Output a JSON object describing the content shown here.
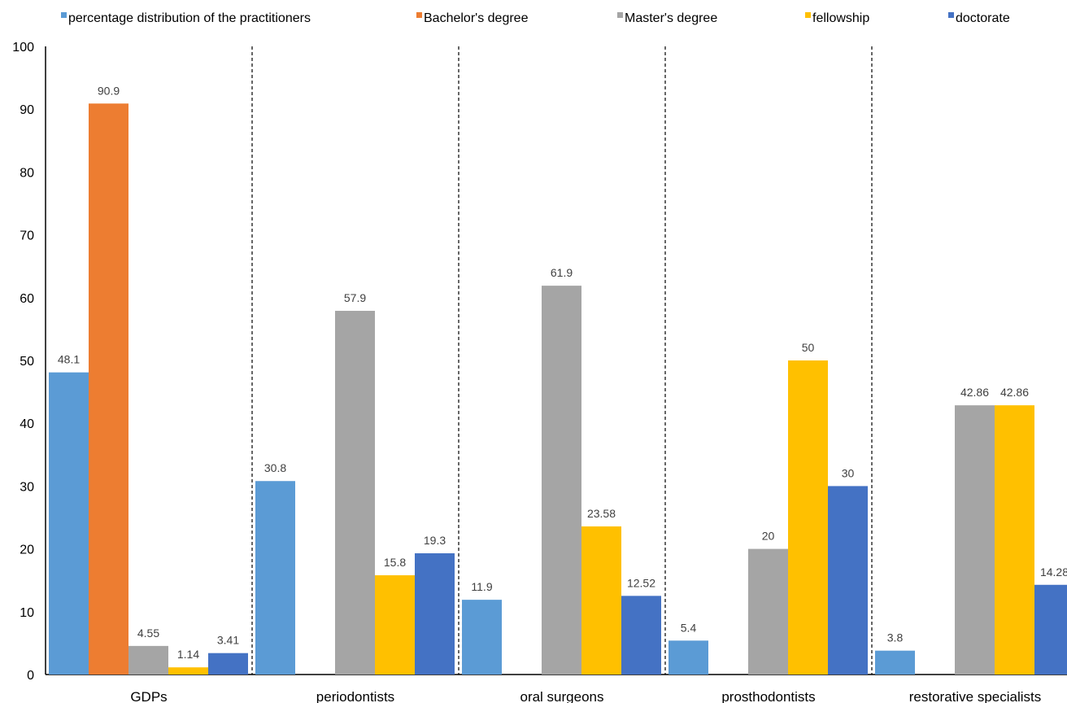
{
  "chart_data": {
    "type": "bar",
    "title": "",
    "xlabel": "",
    "ylabel": "",
    "ylim": [
      0,
      100
    ],
    "y_ticks": [
      0,
      10,
      20,
      30,
      40,
      50,
      60,
      70,
      80,
      90,
      100
    ],
    "grid": false,
    "legend_position": "top",
    "categories": [
      "GDPs",
      "periodontists",
      "oral surgeons",
      "prosthodontists",
      "restorative specialists"
    ],
    "series": [
      {
        "name": "percentage distribution of the practitioners",
        "color": "#5B9BD5",
        "values": [
          48.1,
          30.8,
          11.9,
          5.4,
          3.8
        ],
        "labels": [
          "48.1",
          "30.8",
          "11.9",
          "5.4",
          "3.8"
        ]
      },
      {
        "name": "Bachelor's degree",
        "color": "#ED7D31",
        "values": [
          90.9,
          null,
          null,
          null,
          null
        ],
        "labels": [
          "90.9",
          "",
          "",
          "",
          ""
        ]
      },
      {
        "name": "Master's degree",
        "color": "#A5A5A5",
        "values": [
          4.55,
          57.9,
          61.9,
          20,
          42.86
        ],
        "labels": [
          "4.55",
          "57.9",
          "61.9",
          "20",
          "42.86"
        ]
      },
      {
        "name": "fellowship",
        "color": "#FFC000",
        "values": [
          1.14,
          15.8,
          23.58,
          50,
          42.86
        ],
        "labels": [
          "1.14",
          "15.8",
          "23.58",
          "50",
          "42.86"
        ]
      },
      {
        "name": "doctorate",
        "color": "#4472C4",
        "values": [
          3.41,
          19.3,
          12.52,
          30,
          14.28
        ],
        "labels": [
          "3.41",
          "19.3",
          "12.52",
          "30",
          "14.28"
        ]
      }
    ]
  }
}
